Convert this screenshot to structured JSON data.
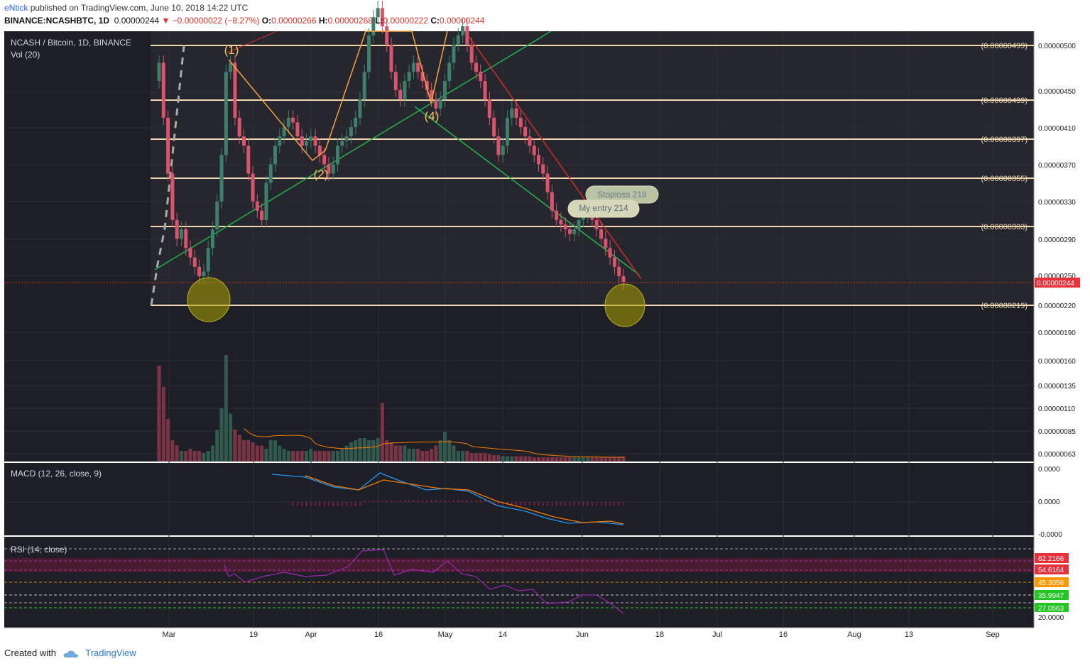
{
  "header": {
    "author": "eNtick",
    "published": "published on TradingView.com, June 10, 2018 14:22 UTC",
    "symbol": "BINANCE:NCASHBTC, 1D",
    "last": "0.00000244",
    "change": "−0.00000022 (−8.27%)",
    "o_label": "O:",
    "o": "0.00000266",
    "h_label": "H:",
    "h": "0.00000268",
    "l_label": "L:",
    "l": "0.00000222",
    "c_label": "C:",
    "c": "0.00000244"
  },
  "legend": {
    "title": "NCASH / Bitcoin, 1D, BINANCE",
    "vol": "Vol (20)",
    "macd": "MACD (12, 26, close, 9)",
    "rsi": "RSI (14, close)"
  },
  "footer": {
    "created": "Created with",
    "brand": "TradingView"
  },
  "colors": {
    "up": "#3f7f6a",
    "down": "#d9546c",
    "fib": "#f2d9b4",
    "ma": "#f57c00",
    "wave": "#f7a23c",
    "green": "#22b14c",
    "red": "#d42a2a",
    "panel": "#1e1f26"
  },
  "chart_data": {
    "type": "candlestick",
    "price_axis_ticks": [
      "0.00000500",
      "0.00000450",
      "0.00000410",
      "0.00000370",
      "0.00000330",
      "0.00000290",
      "0.00000250",
      "0.00000220",
      "0.00000190",
      "0.00000160",
      "0.00000135",
      "0.00000110",
      "0.00000085",
      "0.00000063"
    ],
    "price_axis_range": [
      6e-07,
      5.2e-06
    ],
    "last_price_label": "0.00000244",
    "time_axis_labels": [
      "Mar",
      "19",
      "Apr",
      "16",
      "May",
      "14",
      "Jun",
      "18",
      "Jul",
      "16",
      "Aug",
      "13",
      "Sep"
    ],
    "fib_levels": [
      "(0.00000499)",
      "(0.00000439)",
      "(0.00000397)",
      "(0.00000355)",
      "(0.00000303)",
      "(0.00000219)"
    ],
    "fib_values": [
      499,
      439,
      397,
      355,
      303,
      219
    ],
    "wave_labels": [
      "(1)",
      "(2)",
      "(4)"
    ],
    "callouts": [
      "Stoploss 218",
      "My entry 214"
    ],
    "macd_axis": [
      "0.0000",
      "0.0000",
      "-0.0000"
    ],
    "rsi_axis": [
      "62.2166",
      "54.6164",
      "45.3056",
      "35.9947",
      "27.0563",
      "20.0000"
    ],
    "close_prices_e8": [
      480,
      420,
      360,
      310,
      290,
      300,
      280,
      270,
      260,
      250,
      255,
      280,
      300,
      330,
      380,
      470,
      480,
      420,
      400,
      390,
      360,
      330,
      320,
      310,
      350,
      370,
      390,
      400,
      410,
      420,
      415,
      400,
      390,
      395,
      400,
      390,
      380,
      370,
      360,
      370,
      390,
      395,
      400,
      410,
      420,
      440,
      470,
      510,
      530,
      540,
      520,
      500,
      470,
      450,
      440,
      460,
      470,
      480,
      470,
      460,
      450,
      440,
      430,
      440,
      460,
      480,
      500,
      510,
      520,
      500,
      480,
      470,
      460,
      440,
      420,
      400,
      380,
      390,
      420,
      430,
      420,
      410,
      400,
      390,
      380,
      370,
      360,
      340,
      320,
      310,
      305,
      300,
      295,
      300,
      310,
      315,
      318,
      310,
      300,
      290,
      280,
      270,
      260,
      250,
      244
    ],
    "volume_rel": [
      0.9,
      0.7,
      0.4,
      0.2,
      0.15,
      0.1,
      0.1,
      0.12,
      0.1,
      0.1,
      0.08,
      0.1,
      0.15,
      0.3,
      0.5,
      1.0,
      0.45,
      0.3,
      0.25,
      0.2,
      0.2,
      0.18,
      0.15,
      0.15,
      0.12,
      0.2,
      0.2,
      0.15,
      0.12,
      0.1,
      0.1,
      0.1,
      0.1,
      0.1,
      0.12,
      0.1,
      0.1,
      0.1,
      0.1,
      0.1,
      0.1,
      0.12,
      0.15,
      0.18,
      0.2,
      0.22,
      0.22,
      0.2,
      0.2,
      0.22,
      0.55,
      0.2,
      0.18,
      0.15,
      0.15,
      0.15,
      0.12,
      0.12,
      0.12,
      0.1,
      0.1,
      0.12,
      0.15,
      0.2,
      0.28,
      0.2,
      0.15,
      0.1,
      0.1,
      0.1,
      0.08,
      0.08,
      0.08,
      0.08,
      0.07,
      0.06,
      0.06,
      0.05,
      0.05,
      0.05,
      0.05,
      0.05,
      0.05,
      0.05,
      0.04,
      0.04,
      0.04,
      0.04,
      0.04,
      0.04,
      0.04,
      0.04,
      0.04,
      0.04,
      0.04,
      0.04,
      0.04,
      0.04,
      0.04,
      0.04,
      0.04,
      0.04,
      0.04,
      0.04,
      0.05
    ]
  }
}
